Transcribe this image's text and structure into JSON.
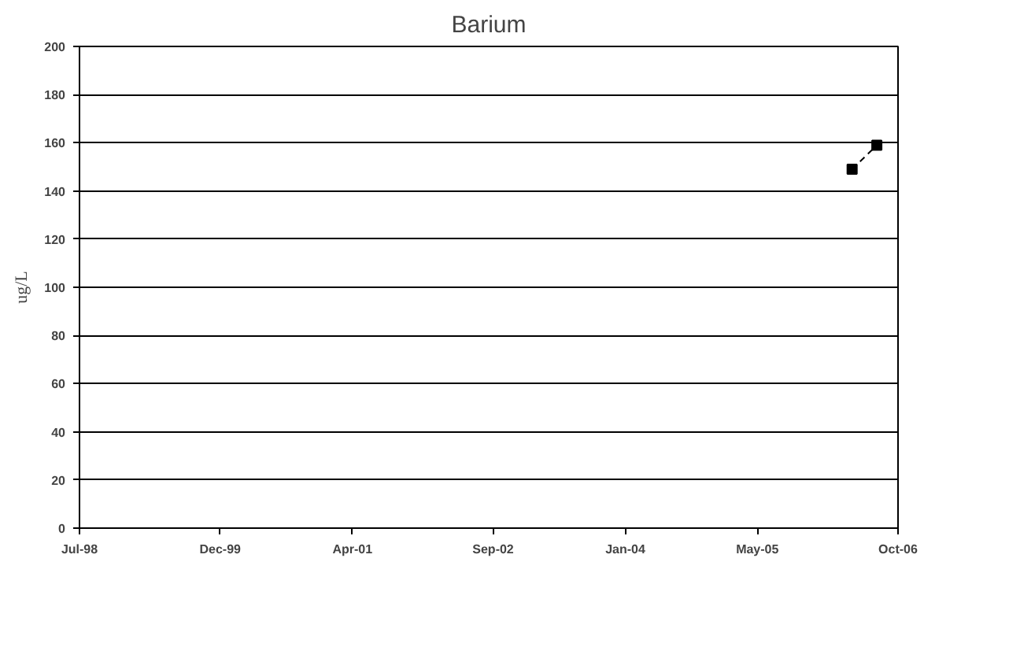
{
  "chart_data": {
    "type": "line",
    "title": "Barium",
    "ylabel": "ug/L",
    "x": [
      "2006-04-15",
      "2006-07-15"
    ],
    "series": [
      {
        "color": "#000000",
        "values": [
          149,
          159
        ]
      }
    ],
    "marker": "square",
    "line_style": "dashed",
    "xlim": [
      "1998-07-01",
      "2006-10-01"
    ],
    "xticks": [
      {
        "value": "1998-07-01",
        "label": "Jul-98"
      },
      {
        "value": "1999-12-01",
        "label": "Dec-99"
      },
      {
        "value": "2001-04-01",
        "label": "Apr-01"
      },
      {
        "value": "2002-09-01",
        "label": "Sep-02"
      },
      {
        "value": "2004-01-01",
        "label": "Jan-04"
      },
      {
        "value": "2005-05-01",
        "label": "May-05"
      },
      {
        "value": "2006-10-01",
        "label": "Oct-06"
      }
    ],
    "ylim": [
      0,
      200
    ],
    "yticks": [
      0,
      20,
      40,
      60,
      80,
      100,
      120,
      140,
      160,
      180,
      200
    ],
    "grid": "y"
  }
}
